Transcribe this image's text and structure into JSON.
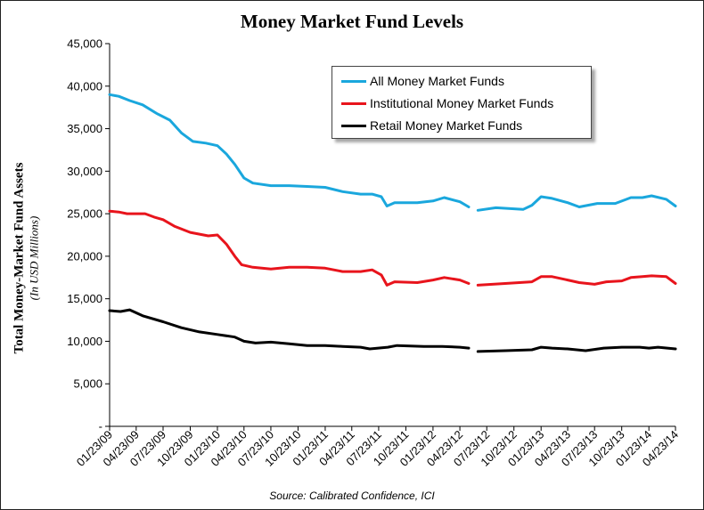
{
  "chart_data": {
    "type": "line",
    "title": "Money Market Fund Levels",
    "ylabel": "Total Money-Market Fund Assets",
    "ylabel_sub": "(In USD Millions)",
    "source": "Source:  Calibrated Confidence, ICI",
    "ylim": [
      0,
      45000
    ],
    "yticks": [
      0,
      5000,
      10000,
      15000,
      20000,
      25000,
      30000,
      35000,
      40000,
      45000
    ],
    "ytick_labels": [
      "-",
      "5,000",
      "10,000",
      "15,000",
      "20,000",
      "25,000",
      "30,000",
      "35,000",
      "40,000",
      "45,000"
    ],
    "xlim": [
      "2009-01-23",
      "2014-04-23"
    ],
    "xticks": [
      "2009-01-23",
      "2009-04-23",
      "2009-07-23",
      "2009-10-23",
      "2010-01-23",
      "2010-04-23",
      "2010-07-23",
      "2010-10-23",
      "2011-01-23",
      "2011-04-23",
      "2011-07-23",
      "2011-10-23",
      "2012-01-23",
      "2012-04-23",
      "2012-07-23",
      "2012-10-23",
      "2013-01-23",
      "2013-04-23",
      "2013-07-23",
      "2013-10-23",
      "2014-01-23",
      "2014-04-23"
    ],
    "xtick_labels": [
      "01/23/09",
      "04/23/09",
      "07/23/09",
      "10/23/09",
      "01/23/10",
      "04/23/10",
      "07/23/10",
      "10/23/10",
      "01/23/11",
      "04/23/11",
      "07/23/11",
      "10/23/11",
      "01/23/12",
      "04/23/12",
      "07/23/12",
      "10/23/12",
      "01/23/13",
      "04/23/13",
      "07/23/13",
      "10/23/13",
      "01/23/14",
      "04/23/14"
    ],
    "grid": false,
    "legend_position": "top-right",
    "series": [
      {
        "name": "All Money Market Funds",
        "color": "#1aa7dd",
        "points": [
          [
            "2009-01-23",
            39000
          ],
          [
            "2009-02-23",
            38800
          ],
          [
            "2009-04-01",
            38300
          ],
          [
            "2009-05-15",
            37800
          ],
          [
            "2009-07-01",
            36800
          ],
          [
            "2009-08-15",
            36000
          ],
          [
            "2009-09-23",
            34500
          ],
          [
            "2009-11-01",
            33500
          ],
          [
            "2009-12-15",
            33300
          ],
          [
            "2010-01-23",
            33000
          ],
          [
            "2010-02-23",
            32000
          ],
          [
            "2010-03-23",
            30800
          ],
          [
            "2010-04-23",
            29200
          ],
          [
            "2010-05-23",
            28600
          ],
          [
            "2010-07-23",
            28300
          ],
          [
            "2010-09-23",
            28300
          ],
          [
            "2010-11-23",
            28200
          ],
          [
            "2011-01-23",
            28100
          ],
          [
            "2011-03-23",
            27600
          ],
          [
            "2011-05-23",
            27300
          ],
          [
            "2011-07-01",
            27300
          ],
          [
            "2011-08-01",
            27000
          ],
          [
            "2011-08-20",
            25900
          ],
          [
            "2011-09-15",
            26300
          ],
          [
            "2011-12-01",
            26300
          ],
          [
            "2012-01-23",
            26500
          ],
          [
            "2012-03-01",
            26900
          ],
          [
            "2012-04-23",
            26400
          ],
          [
            "2012-05-23",
            25800
          ],
          null,
          [
            "2012-06-23",
            25400
          ],
          [
            "2012-08-23",
            25700
          ],
          [
            "2012-11-23",
            25500
          ],
          [
            "2012-12-23",
            26000
          ],
          [
            "2013-01-23",
            27000
          ],
          [
            "2013-03-01",
            26800
          ],
          [
            "2013-04-23",
            26300
          ],
          [
            "2013-06-01",
            25800
          ],
          [
            "2013-08-01",
            26200
          ],
          [
            "2013-10-01",
            26200
          ],
          [
            "2013-11-23",
            26900
          ],
          [
            "2014-01-01",
            26900
          ],
          [
            "2014-02-01",
            27100
          ],
          [
            "2014-03-23",
            26700
          ],
          [
            "2014-04-23",
            25900
          ]
        ]
      },
      {
        "name": "Institutional Money Market Funds",
        "color": "#e8141c",
        "points": [
          [
            "2009-01-23",
            25300
          ],
          [
            "2009-02-23",
            25200
          ],
          [
            "2009-03-23",
            25000
          ],
          [
            "2009-05-23",
            25000
          ],
          [
            "2009-06-23",
            24600
          ],
          [
            "2009-07-23",
            24300
          ],
          [
            "2009-09-01",
            23500
          ],
          [
            "2009-10-23",
            22800
          ],
          [
            "2009-12-23",
            22400
          ],
          [
            "2010-01-23",
            22500
          ],
          [
            "2010-02-23",
            21400
          ],
          [
            "2010-03-23",
            20000
          ],
          [
            "2010-04-15",
            19000
          ],
          [
            "2010-05-23",
            18700
          ],
          [
            "2010-07-23",
            18500
          ],
          [
            "2010-09-23",
            18700
          ],
          [
            "2010-11-23",
            18700
          ],
          [
            "2011-01-23",
            18600
          ],
          [
            "2011-03-23",
            18200
          ],
          [
            "2011-05-23",
            18200
          ],
          [
            "2011-07-01",
            18400
          ],
          [
            "2011-08-01",
            17800
          ],
          [
            "2011-08-20",
            16600
          ],
          [
            "2011-09-15",
            17000
          ],
          [
            "2011-12-01",
            16900
          ],
          [
            "2012-01-23",
            17200
          ],
          [
            "2012-03-01",
            17500
          ],
          [
            "2012-04-23",
            17200
          ],
          [
            "2012-05-23",
            16800
          ],
          null,
          [
            "2012-06-23",
            16600
          ],
          [
            "2012-09-23",
            16800
          ],
          [
            "2012-12-23",
            17000
          ],
          [
            "2013-01-23",
            17600
          ],
          [
            "2013-03-01",
            17600
          ],
          [
            "2013-04-23",
            17200
          ],
          [
            "2013-06-01",
            16900
          ],
          [
            "2013-07-23",
            16700
          ],
          [
            "2013-09-01",
            17000
          ],
          [
            "2013-10-23",
            17100
          ],
          [
            "2013-11-23",
            17500
          ],
          [
            "2014-01-01",
            17600
          ],
          [
            "2014-02-01",
            17700
          ],
          [
            "2014-03-23",
            17600
          ],
          [
            "2014-04-23",
            16800
          ]
        ]
      },
      {
        "name": "Retail Money Market Funds",
        "color": "#000000",
        "points": [
          [
            "2009-01-23",
            13600
          ],
          [
            "2009-03-01",
            13500
          ],
          [
            "2009-04-01",
            13700
          ],
          [
            "2009-05-15",
            13000
          ],
          [
            "2009-07-23",
            12300
          ],
          [
            "2009-09-23",
            11600
          ],
          [
            "2009-11-23",
            11100
          ],
          [
            "2010-01-23",
            10800
          ],
          [
            "2010-03-23",
            10500
          ],
          [
            "2010-04-23",
            10000
          ],
          [
            "2010-06-01",
            9800
          ],
          [
            "2010-07-23",
            9900
          ],
          [
            "2010-09-23",
            9700
          ],
          [
            "2010-11-23",
            9500
          ],
          [
            "2011-01-23",
            9500
          ],
          [
            "2011-03-23",
            9400
          ],
          [
            "2011-05-23",
            9300
          ],
          [
            "2011-06-23",
            9100
          ],
          [
            "2011-08-23",
            9300
          ],
          [
            "2011-09-23",
            9500
          ],
          [
            "2011-12-23",
            9400
          ],
          [
            "2012-02-23",
            9400
          ],
          [
            "2012-04-23",
            9300
          ],
          [
            "2012-05-23",
            9200
          ],
          null,
          [
            "2012-06-23",
            8800
          ],
          [
            "2012-09-23",
            8900
          ],
          [
            "2012-12-23",
            9000
          ],
          [
            "2013-01-23",
            9300
          ],
          [
            "2013-03-01",
            9200
          ],
          [
            "2013-04-23",
            9100
          ],
          [
            "2013-06-23",
            8900
          ],
          [
            "2013-08-23",
            9200
          ],
          [
            "2013-10-23",
            9300
          ],
          [
            "2013-12-23",
            9300
          ],
          [
            "2014-01-23",
            9200
          ],
          [
            "2014-02-23",
            9300
          ],
          [
            "2014-04-23",
            9100
          ]
        ]
      }
    ]
  }
}
